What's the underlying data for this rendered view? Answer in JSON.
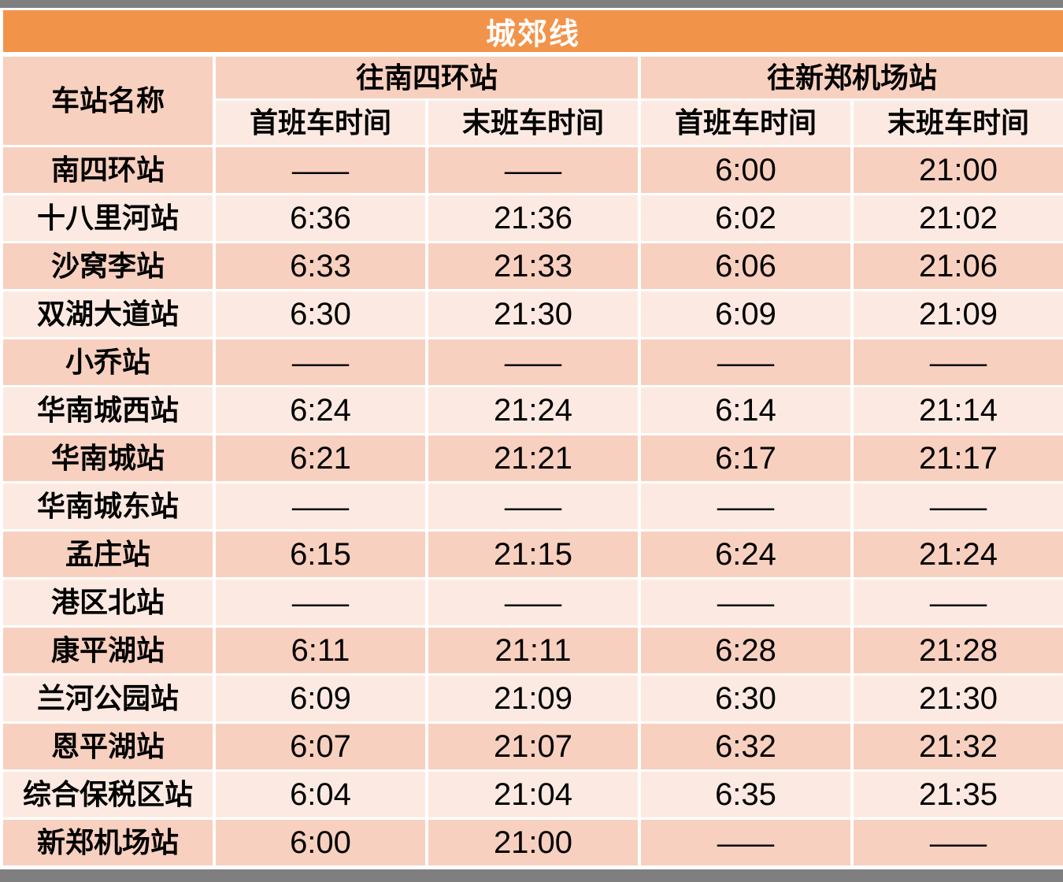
{
  "title": "城郊线",
  "colors": {
    "title_bar": "#F2934A",
    "band_dark": "#F8D0BF",
    "band_light": "#FCEAE2",
    "frame_bar_gray": "#7F7F7F",
    "title_text": "#FFFFFF",
    "cell_text": "#000000"
  },
  "table": {
    "station_header": "车站名称",
    "directions": [
      {
        "label": "往南四环站",
        "first_label": "首班车时间",
        "last_label": "末班车时间"
      },
      {
        "label": "往新郑机场站",
        "first_label": "首班车时间",
        "last_label": "末班车时间"
      }
    ],
    "no_service": "——",
    "rows": [
      {
        "station": "南四环站",
        "times": [
          "——",
          "——",
          "6:00",
          "21:00"
        ]
      },
      {
        "station": "十八里河站",
        "times": [
          "6:36",
          "21:36",
          "6:02",
          "21:02"
        ]
      },
      {
        "station": "沙窝李站",
        "times": [
          "6:33",
          "21:33",
          "6:06",
          "21:06"
        ]
      },
      {
        "station": "双湖大道站",
        "times": [
          "6:30",
          "21:30",
          "6:09",
          "21:09"
        ]
      },
      {
        "station": "小乔站",
        "times": [
          "——",
          "——",
          "——",
          "——"
        ]
      },
      {
        "station": "华南城西站",
        "times": [
          "6:24",
          "21:24",
          "6:14",
          "21:14"
        ]
      },
      {
        "station": "华南城站",
        "times": [
          "6:21",
          "21:21",
          "6:17",
          "21:17"
        ]
      },
      {
        "station": "华南城东站",
        "times": [
          "——",
          "——",
          "——",
          "——"
        ]
      },
      {
        "station": "孟庄站",
        "times": [
          "6:15",
          "21:15",
          "6:24",
          "21:24"
        ]
      },
      {
        "station": "港区北站",
        "times": [
          "——",
          "——",
          "——",
          "——"
        ]
      },
      {
        "station": "康平湖站",
        "times": [
          "6:11",
          "21:11",
          "6:28",
          "21:28"
        ]
      },
      {
        "station": "兰河公园站",
        "times": [
          "6:09",
          "21:09",
          "6:30",
          "21:30"
        ]
      },
      {
        "station": "恩平湖站",
        "times": [
          "6:07",
          "21:07",
          "6:32",
          "21:32"
        ]
      },
      {
        "station": "综合保税区站",
        "times": [
          "6:04",
          "21:04",
          "6:35",
          "21:35"
        ]
      },
      {
        "station": "新郑机场站",
        "times": [
          "6:00",
          "21:00",
          "——",
          "——"
        ]
      }
    ]
  }
}
